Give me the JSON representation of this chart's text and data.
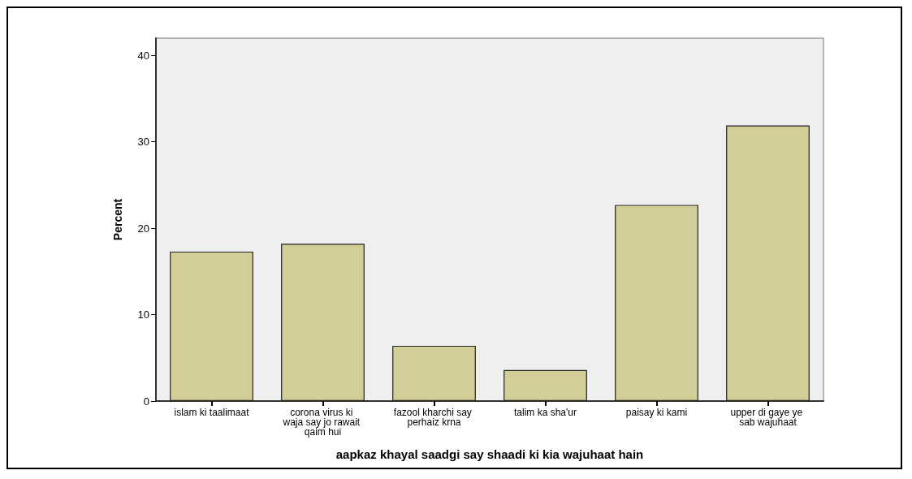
{
  "chart_data": {
    "type": "bar",
    "xlabel": "aapkaz khayal saadgi say shaadi ki kia wajuhaat hain",
    "ylabel": "Percent",
    "categories": [
      "islam ki taalimaat",
      "corona virus ki waja say jo rawait qaim hui",
      "fazool kharchi say perhaiz krna",
      "talim ka sha'ur",
      "paisay ki kami",
      "upper di gaye ye sab wajuhaat"
    ],
    "values": [
      17.3,
      18.2,
      6.4,
      3.6,
      22.7,
      31.9
    ],
    "color": "#d3ce97",
    "ylim": [
      0,
      42
    ],
    "yticks": [
      0,
      10,
      20,
      30,
      40
    ],
    "grid": false
  }
}
